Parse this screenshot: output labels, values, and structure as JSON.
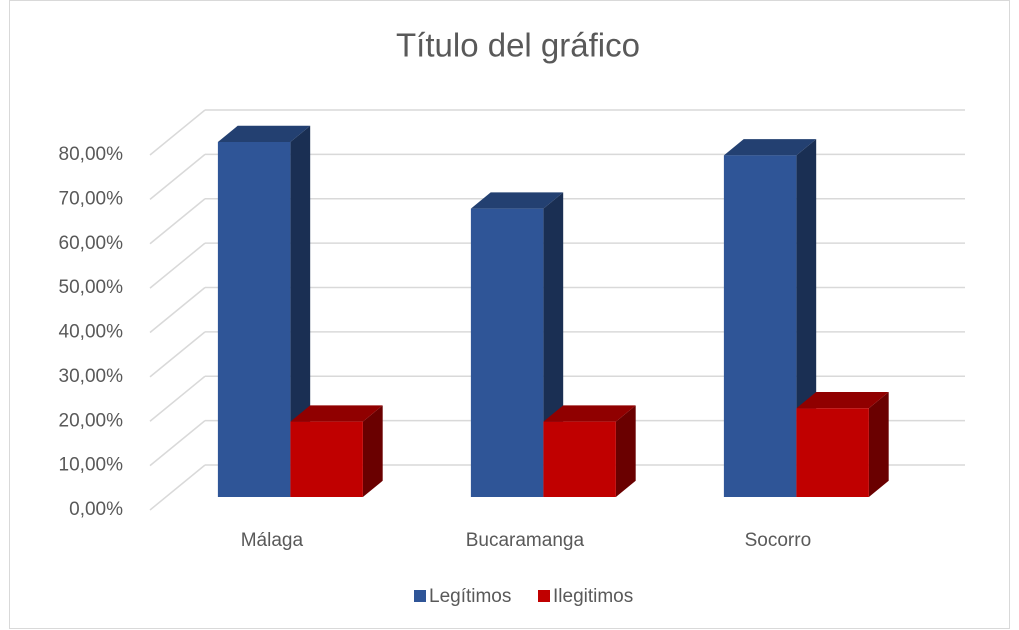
{
  "chart_data": {
    "type": "bar",
    "title": "Título del gráfico",
    "categories": [
      "Málaga",
      "Bucaramanga",
      "Socorro"
    ],
    "series": [
      {
        "name": "Legítimos",
        "color": "#2f5597",
        "values": [
          80,
          65,
          77
        ]
      },
      {
        "name": "Ilegitimos",
        "color": "#c00000",
        "values": [
          17,
          17,
          20
        ]
      }
    ],
    "ylim": [
      0,
      80
    ],
    "yticks": [
      {
        "value": 0,
        "label": "0,00%"
      },
      {
        "value": 10,
        "label": "10,00%"
      },
      {
        "value": 20,
        "label": "20,00%"
      },
      {
        "value": 30,
        "label": "30,00%"
      },
      {
        "value": 40,
        "label": "40,00%"
      },
      {
        "value": 50,
        "label": "50,00%"
      },
      {
        "value": 60,
        "label": "60,00%"
      },
      {
        "value": 70,
        "label": "70,00%"
      },
      {
        "value": 80,
        "label": "80,00%"
      }
    ],
    "grid": true
  }
}
